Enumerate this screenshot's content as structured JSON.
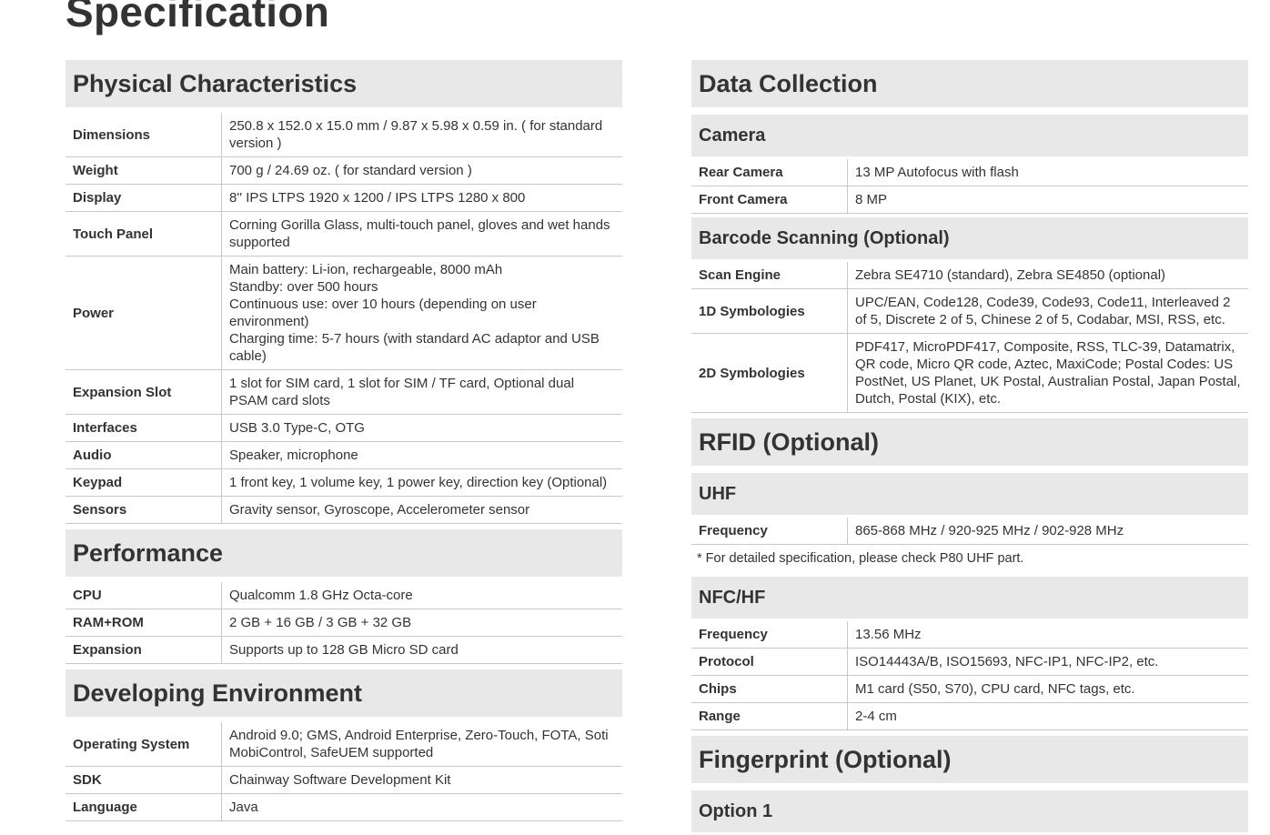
{
  "title": "Specification",
  "left": [
    {
      "type": "h1",
      "text": "Physical Characteristics"
    },
    {
      "type": "row",
      "k": "Dimensions",
      "v": "250.8 x 152.0 x 15.0 mm / 9.87 x 5.98 x 0.59 in. ( for standard version )"
    },
    {
      "type": "row",
      "k": "Weight",
      "v": "700 g / 24.69 oz. ( for standard version )"
    },
    {
      "type": "row",
      "k": "Display",
      "v": "8'' IPS LTPS 1920 x 1200 / IPS LTPS 1280 x 800"
    },
    {
      "type": "row",
      "k": "Touch Panel",
      "v": "Corning Gorilla Glass, multi-touch panel, gloves and wet hands supported"
    },
    {
      "type": "row",
      "k": "Power",
      "v": "Main battery: Li-ion, rechargeable, 8000 mAh\nStandby: over 500 hours\nContinuous use: over 10 hours (depending on user environment)\nCharging time: 5-7 hours (with standard AC adaptor and USB cable)"
    },
    {
      "type": "row",
      "k": "Expansion Slot",
      "v": "1 slot for SIM card, 1 slot for SIM / TF card, Optional dual PSAM card slots"
    },
    {
      "type": "row",
      "k": "Interfaces",
      "v": "USB 3.0 Type-C, OTG"
    },
    {
      "type": "row",
      "k": "Audio",
      "v": "Speaker, microphone"
    },
    {
      "type": "row",
      "k": "Keypad",
      "v": "1 front key, 1 volume key, 1 power key, direction key (Optional)"
    },
    {
      "type": "row",
      "k": "Sensors",
      "v": "Gravity sensor, Gyroscope, Accelerometer sensor"
    },
    {
      "type": "h1",
      "text": "Performance"
    },
    {
      "type": "row",
      "k": "CPU",
      "v": "Qualcomm 1.8 GHz Octa-core"
    },
    {
      "type": "row",
      "k": "RAM+ROM",
      "v": "2 GB + 16 GB / 3 GB + 32 GB"
    },
    {
      "type": "row",
      "k": "Expansion",
      "v": "Supports up to 128 GB Micro SD card"
    },
    {
      "type": "h1",
      "text": "Developing Environment"
    },
    {
      "type": "row",
      "k": "Operating System",
      "v": "Android 9.0;  GMS, Android Enterprise, Zero-Touch, FOTA, Soti MobiControl, SafeUEM supported"
    },
    {
      "type": "row",
      "k": "SDK",
      "v": "Chainway Software Development Kit"
    },
    {
      "type": "row",
      "k": "Language",
      "v": "Java"
    }
  ],
  "right": [
    {
      "type": "h1",
      "text": "Data Collection"
    },
    {
      "type": "h2",
      "text": "Camera"
    },
    {
      "type": "row",
      "k": "Rear Camera",
      "v": "13 MP Autofocus with flash"
    },
    {
      "type": "row",
      "k": "Front Camera",
      "v": "8 MP"
    },
    {
      "type": "h2",
      "text": "Barcode Scanning (Optional)"
    },
    {
      "type": "row",
      "k": "Scan Engine",
      "v": "Zebra SE4710 (standard), Zebra SE4850 (optional)"
    },
    {
      "type": "row",
      "k": "1D Symbologies",
      "v": "UPC/EAN, Code128, Code39, Code93, Code11, Interleaved 2 of 5, Discrete 2 of 5, Chinese 2 of 5, Codabar, MSI, RSS, etc."
    },
    {
      "type": "row",
      "k": "2D Symbologies",
      "v": "PDF417, MicroPDF417, Composite, RSS, TLC-39, Datamatrix, QR code, Micro QR code, Aztec, MaxiCode; Postal Codes: US PostNet, US Planet, UK Postal, Australian Postal, Japan Postal, Dutch, Postal (KIX), etc."
    },
    {
      "type": "h1",
      "text": "RFID (Optional)"
    },
    {
      "type": "h2",
      "text": "UHF"
    },
    {
      "type": "row",
      "k": "Frequency",
      "v": "865-868 MHz / 920-925 MHz / 902-928 MHz"
    },
    {
      "type": "note",
      "text": "* For detailed specification, please check P80 UHF part."
    },
    {
      "type": "h2",
      "text": "NFC/HF"
    },
    {
      "type": "row",
      "k": "Frequency",
      "v": "13.56 MHz"
    },
    {
      "type": "row",
      "k": "Protocol",
      "v": "ISO14443A/B, ISO15693, NFC-IP1, NFC-IP2, etc."
    },
    {
      "type": "row",
      "k": "Chips",
      "v": "M1 card (S50, S70), CPU card, NFC tags, etc."
    },
    {
      "type": "row",
      "k": "Range",
      "v": "2-4 cm"
    },
    {
      "type": "h1",
      "text": "Fingerprint (Optional)"
    },
    {
      "type": "h2",
      "text": "Option 1"
    }
  ]
}
